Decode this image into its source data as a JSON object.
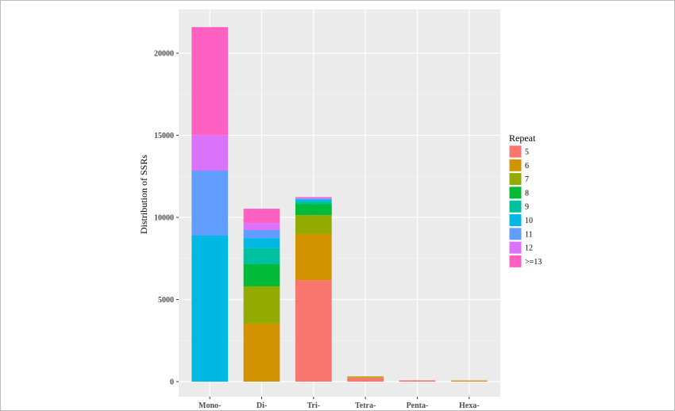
{
  "chart_data": {
    "type": "bar",
    "stacked": true,
    "categories": [
      "Mono-",
      "Di-",
      "Tri-",
      "Tetra-",
      "Penta-",
      "Hexa-"
    ],
    "ylabel": "Distribution of SSRs",
    "xlabel": "",
    "ylim": [
      -918,
      22660
    ],
    "yticks": [
      0,
      5000,
      10000,
      15000,
      20000
    ],
    "grid": true,
    "legend": {
      "title": "Repeat",
      "placement": "right"
    },
    "series": [
      {
        "name": "5",
        "color": "#F8766D",
        "values": [
          0,
          0,
          6180,
          230,
          80,
          20
        ]
      },
      {
        "name": "6",
        "color": "#D39200",
        "values": [
          0,
          3530,
          2810,
          50,
          0,
          50
        ]
      },
      {
        "name": "7",
        "color": "#93AA00",
        "values": [
          0,
          2270,
          1150,
          40,
          0,
          0
        ]
      },
      {
        "name": "8",
        "color": "#00BA38",
        "values": [
          0,
          1350,
          680,
          0,
          0,
          0
        ]
      },
      {
        "name": "9",
        "color": "#00C19F",
        "values": [
          0,
          970,
          150,
          0,
          0,
          0
        ]
      },
      {
        "name": "10",
        "color": "#00B9E3",
        "values": [
          8890,
          620,
          120,
          0,
          0,
          0
        ]
      },
      {
        "name": "11",
        "color": "#619CFF",
        "values": [
          3960,
          490,
          60,
          0,
          0,
          0
        ]
      },
      {
        "name": "12",
        "color": "#DB72FB",
        "values": [
          2170,
          430,
          40,
          0,
          0,
          0
        ]
      },
      {
        "name": ">=13",
        "color": "#FF61C3",
        "values": [
          6570,
          870,
          50,
          0,
          0,
          0
        ]
      }
    ]
  }
}
